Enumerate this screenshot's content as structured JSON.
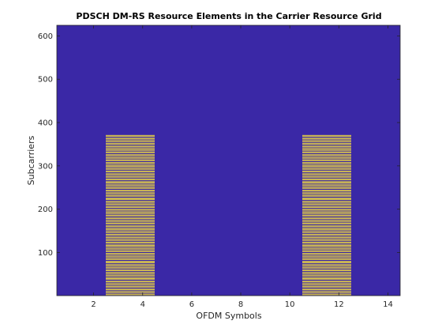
{
  "chart_data": {
    "type": "heatmap",
    "title": "PDSCH DM-RS Resource Elements in the Carrier Resource Grid",
    "xlabel": "OFDM Symbols",
    "ylabel": "Subcarriers",
    "xlim": [
      0.5,
      14.5
    ],
    "ylim": [
      0.5,
      624.5
    ],
    "xticks": [
      2,
      4,
      6,
      8,
      10,
      12,
      14
    ],
    "yticks": [
      100,
      200,
      300,
      400,
      500,
      600
    ],
    "grid": false,
    "colors": {
      "background": "#3a28a6",
      "dmrs": "#f6e03c"
    },
    "dmrs_symbols": [
      3,
      4,
      11,
      12
    ],
    "dmrs_subcarrier_range": [
      1,
      372
    ],
    "dmrs_subcarrier_period": 2
  }
}
